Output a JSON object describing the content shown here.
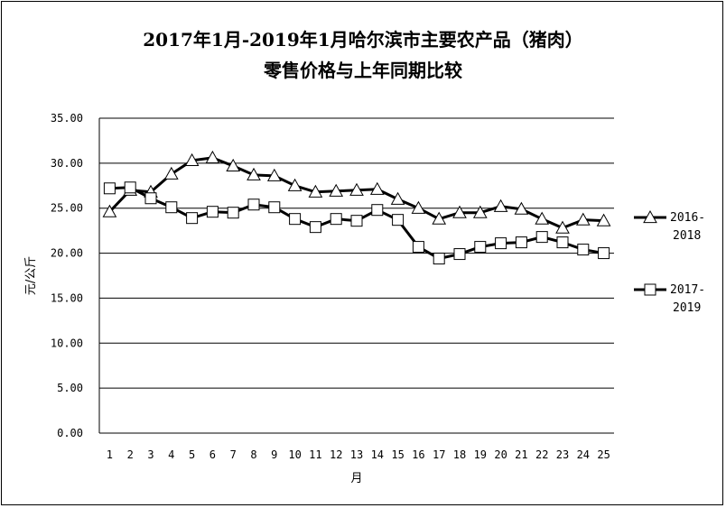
{
  "chart_data": {
    "type": "line",
    "title_line1": "2017年1月-2019年1月哈尔滨市主要农产品（猪肉）",
    "title_line2": "零售价格与上年同期比较",
    "xlabel": "月",
    "ylabel": "元/公斤",
    "ylim": [
      0,
      35
    ],
    "yticks": [
      "0.00",
      "5.00",
      "10.00",
      "15.00",
      "20.00",
      "25.00",
      "30.00",
      "35.00"
    ],
    "categories": [
      "1",
      "2",
      "3",
      "4",
      "5",
      "6",
      "7",
      "8",
      "9",
      "10",
      "11",
      "12",
      "13",
      "14",
      "15",
      "16",
      "17",
      "18",
      "19",
      "20",
      "21",
      "22",
      "23",
      "24",
      "25"
    ],
    "grid": true,
    "legend_position": "right",
    "series": [
      {
        "name": "2016-2018",
        "name_line1": "2016-",
        "name_line2": "2018",
        "marker": "triangle",
        "values": [
          24.6,
          27.0,
          26.8,
          28.8,
          30.3,
          30.6,
          29.7,
          28.7,
          28.6,
          27.5,
          26.8,
          26.9,
          27.0,
          27.1,
          26.0,
          25.0,
          23.8,
          24.5,
          24.5,
          25.2,
          24.9,
          23.8,
          22.8,
          23.7,
          23.6
        ]
      },
      {
        "name": "2017-2019",
        "name_line1": "2017-",
        "name_line2": "2019",
        "marker": "square",
        "values": [
          27.2,
          27.3,
          26.1,
          25.1,
          23.9,
          24.6,
          24.5,
          25.4,
          25.1,
          23.8,
          22.9,
          23.8,
          23.6,
          24.8,
          23.7,
          20.7,
          19.4,
          19.9,
          20.7,
          21.1,
          21.2,
          21.8,
          21.2,
          20.4,
          20.0
        ]
      }
    ]
  }
}
